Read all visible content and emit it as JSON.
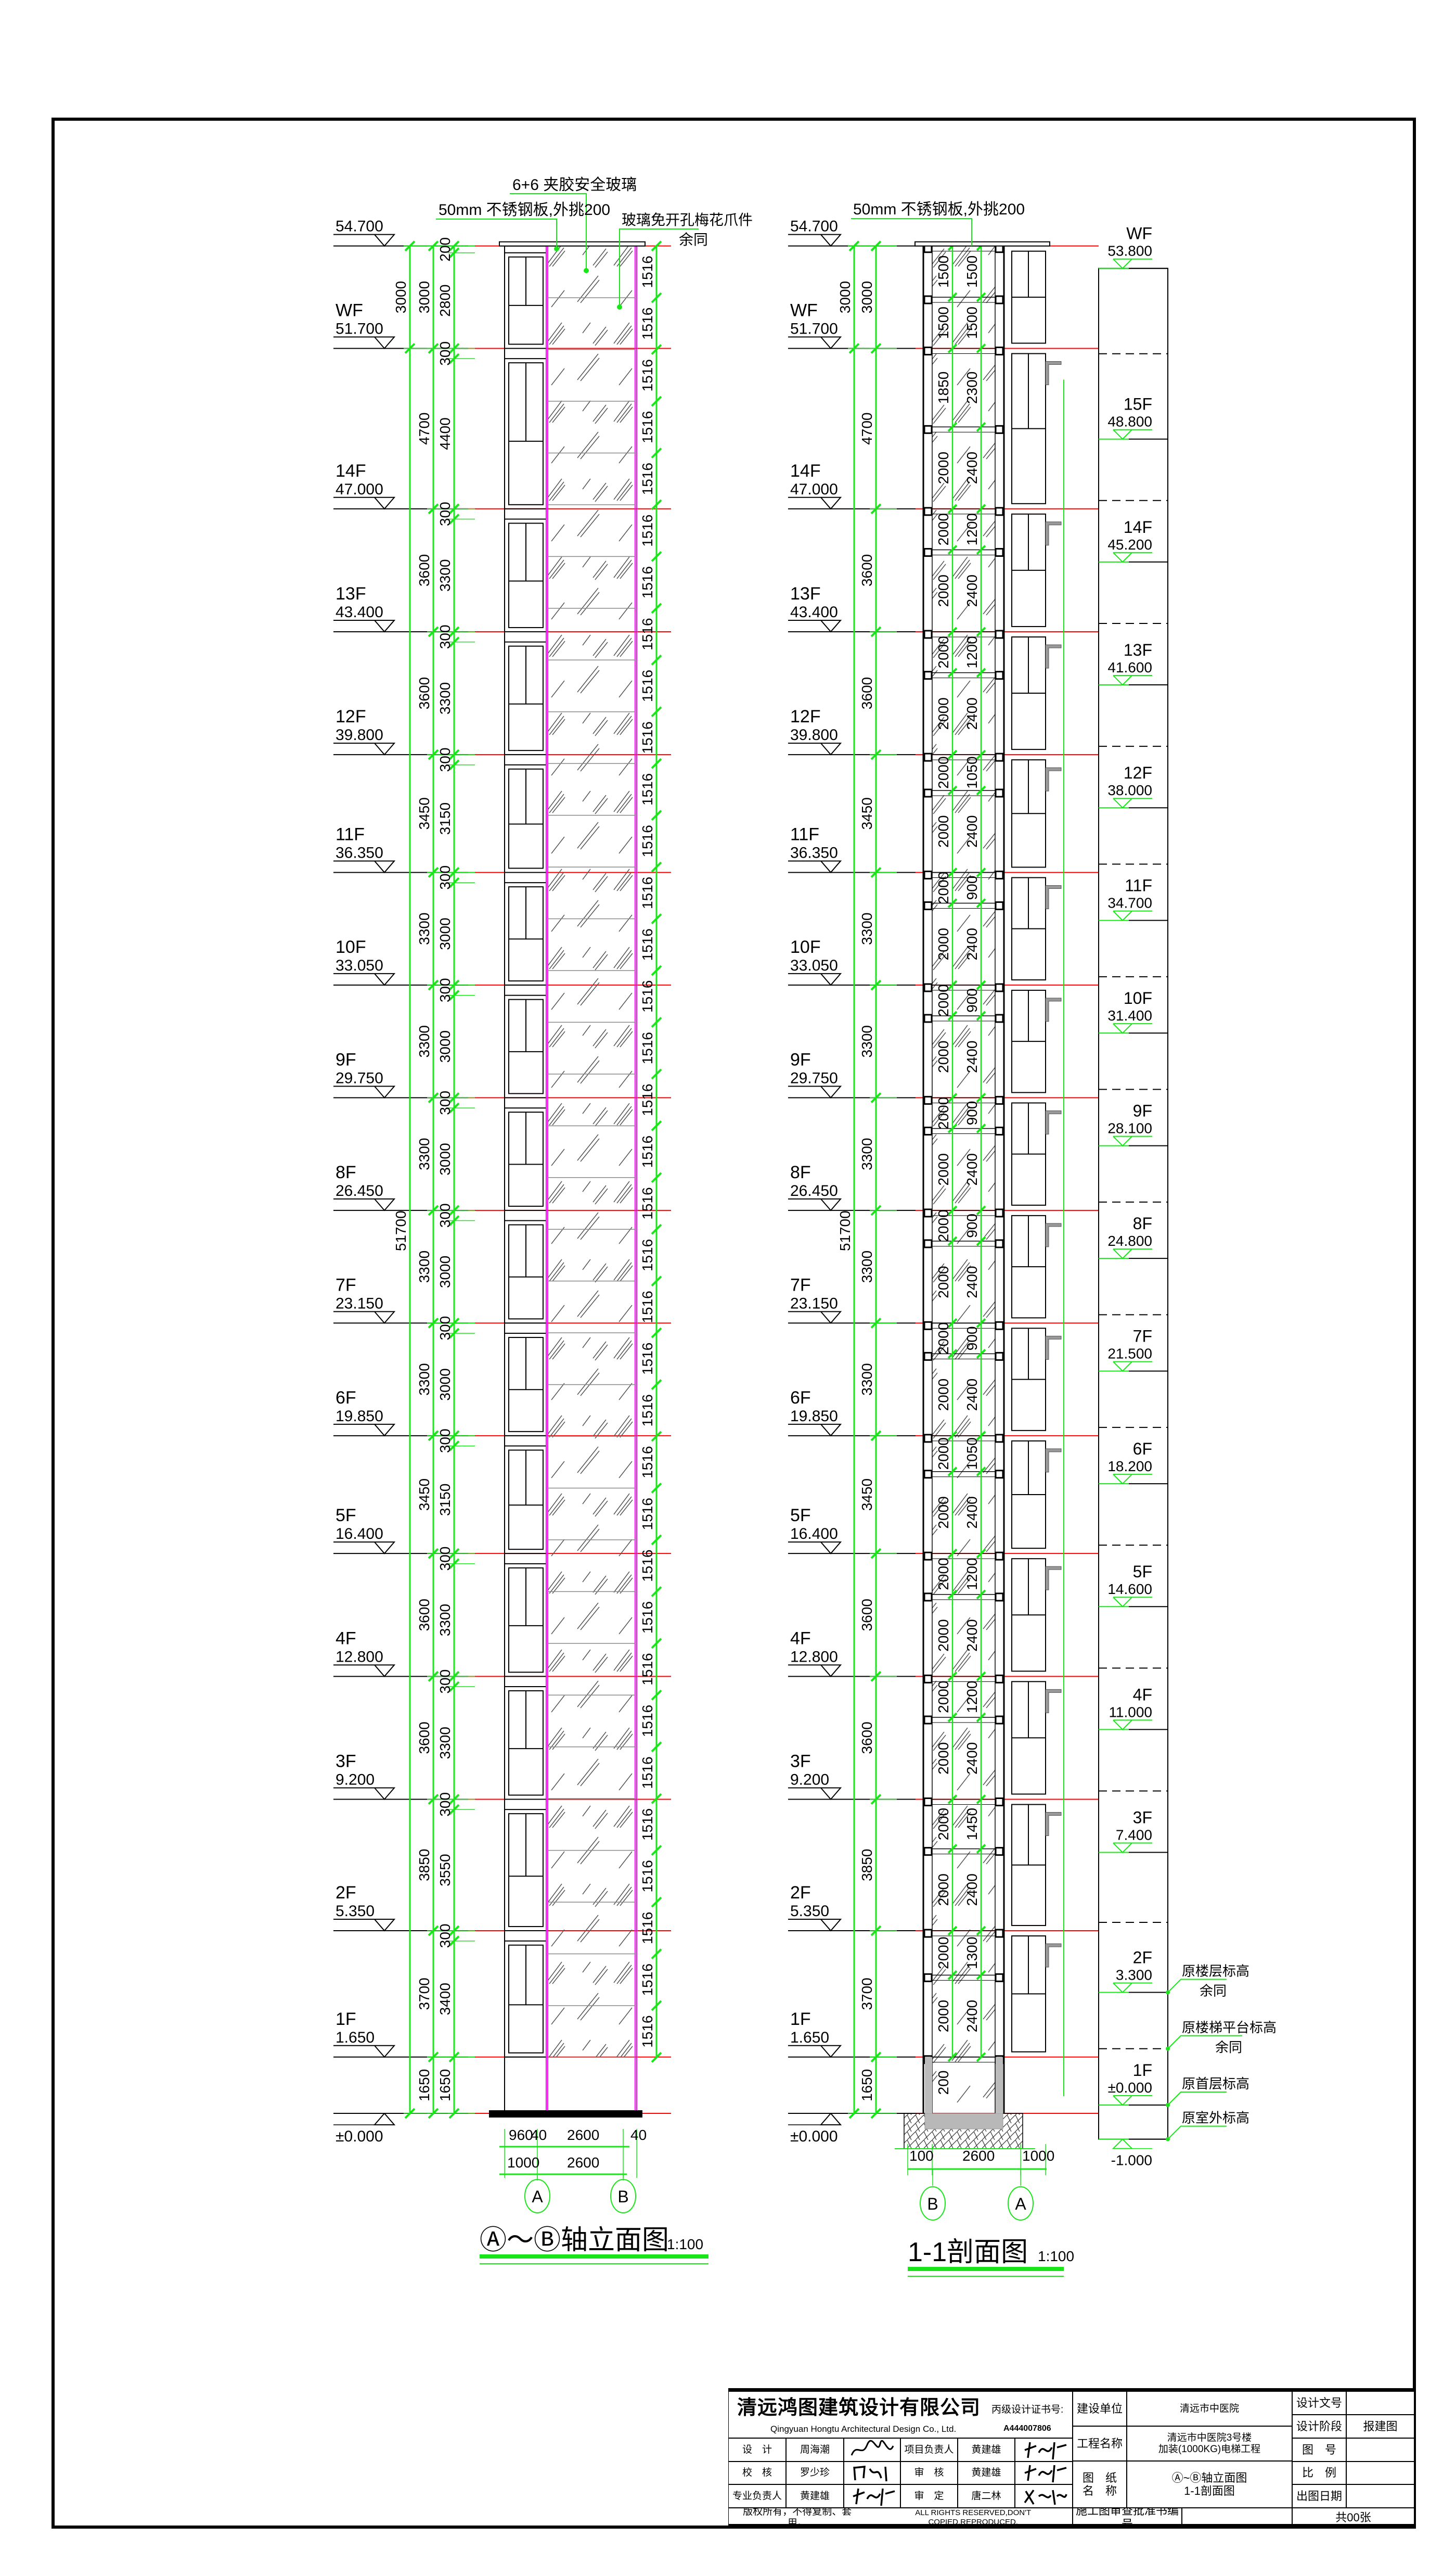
{
  "colors": {
    "dimension": "#19e619",
    "level_line": "#ff0000",
    "glass_edge": "#ff00ff",
    "hatch": "#555555",
    "border": "#000000"
  },
  "elevation_view": {
    "title": "Ⓐ～Ⓑ轴立面图",
    "scale": "1:100",
    "annotations": {
      "glass": "6+6 夹胶安全玻璃",
      "steel_plate": "50mm 不锈钢板,外挑200",
      "fitting": "玻璃免开孔梅花爪件",
      "same_rest": "余同"
    },
    "levels": [
      {
        "name": "",
        "value": "54.700"
      },
      {
        "name": "WF",
        "value": "51.700"
      },
      {
        "name": "14F",
        "value": "47.000"
      },
      {
        "name": "13F",
        "value": "43.400"
      },
      {
        "name": "12F",
        "value": "39.800"
      },
      {
        "name": "11F",
        "value": "36.350"
      },
      {
        "name": "10F",
        "value": "33.050"
      },
      {
        "name": "9F",
        "value": "29.750"
      },
      {
        "name": "8F",
        "value": "26.450"
      },
      {
        "name": "7F",
        "value": "23.150"
      },
      {
        "name": "6F",
        "value": "19.850"
      },
      {
        "name": "5F",
        "value": "16.400"
      },
      {
        "name": "4F",
        "value": "12.800"
      },
      {
        "name": "3F",
        "value": "9.200"
      },
      {
        "name": "2F",
        "value": "5.350"
      },
      {
        "name": "1F",
        "value": "1.650"
      },
      {
        "name": "",
        "value": "±0.000"
      }
    ],
    "total_dims": [
      "3000",
      "51700"
    ],
    "floor_dims": [
      "3000",
      "4700",
      "3600",
      "3600",
      "3450",
      "3300",
      "3300",
      "3300",
      "3300",
      "3300",
      "3450",
      "3600",
      "3600",
      "3850",
      "3700",
      "1650"
    ],
    "inner_dims": [
      "200",
      "2800",
      "300",
      "4400",
      "300",
      "3300",
      "300",
      "3300",
      "300",
      "3150",
      "300",
      "3000",
      "300",
      "3000",
      "300",
      "3000",
      "300",
      "3000",
      "300",
      "3000",
      "300",
      "3150",
      "300",
      "3300",
      "300",
      "3300",
      "300",
      "3550",
      "300",
      "3400",
      "1650"
    ],
    "glass_panel_dim": "1516",
    "glass_panel_count": 35,
    "bottom_dims_row1": [
      "960",
      "40",
      "2600",
      "40"
    ],
    "bottom_dims_row2": [
      "1000",
      "2600"
    ],
    "axes": [
      "A",
      "B"
    ]
  },
  "section_view": {
    "title": "1-1剖面图",
    "scale": "1:100",
    "annotation": "50mm 不锈钢板,外挑200",
    "total_dims": [
      "3000",
      "51700"
    ],
    "col_a": [
      "1500",
      "1500",
      "1850",
      "2000",
      "2000",
      "2000",
      "2000",
      "2000",
      "2000",
      "2000",
      "2000",
      "2000",
      "2000",
      "2000",
      "2000",
      "2000",
      "2000",
      "2000",
      "2000",
      "2000",
      "2000",
      "2000",
      "2000",
      "2000",
      "2000",
      "2000",
      "2000",
      "2000",
      "2000",
      "2000"
    ],
    "col_b": [
      "1500",
      "1500",
      "2300",
      "2400",
      "1200",
      "2400",
      "1200",
      "2400",
      "1050",
      "2400",
      "900",
      "2400",
      "900",
      "2400",
      "900",
      "2400",
      "900",
      "2400",
      "900",
      "2400",
      "1050",
      "2400",
      "1200",
      "2400",
      "1200",
      "2400",
      "1450",
      "2400",
      "1300",
      "2400"
    ],
    "base_dim": "200",
    "existing_levels": [
      {
        "name": "WF",
        "value": "53.800"
      },
      {
        "name": "15F",
        "value": "48.800"
      },
      {
        "name": "14F",
        "value": "45.200"
      },
      {
        "name": "13F",
        "value": "41.600"
      },
      {
        "name": "12F",
        "value": "38.000"
      },
      {
        "name": "11F",
        "value": "34.700"
      },
      {
        "name": "10F",
        "value": "31.400"
      },
      {
        "name": "9F",
        "value": "28.100"
      },
      {
        "name": "8F",
        "value": "24.800"
      },
      {
        "name": "7F",
        "value": "21.500"
      },
      {
        "name": "6F",
        "value": "18.200"
      },
      {
        "name": "5F",
        "value": "14.600"
      },
      {
        "name": "4F",
        "value": "11.000"
      },
      {
        "name": "3F",
        "value": "7.400"
      },
      {
        "name": "2F",
        "value": "3.300"
      },
      {
        "name": "1F",
        "value": "±0.000"
      },
      {
        "name": "",
        "value": "-1.000"
      }
    ],
    "notes": {
      "floor_level": "原楼层标高",
      "floor_level_same": "余同",
      "stair_landing": "原楼梯平台标高",
      "stair_landing_same": "余同",
      "ground_floor": "原首层标高",
      "outdoor": "原室外标高"
    },
    "bottom_dims": [
      "100",
      "2600",
      "1000"
    ],
    "axes": [
      "B",
      "A"
    ]
  },
  "title_block": {
    "company_cn": "清远鸿图建筑设计有限公司",
    "company_en": "Qingyuan  Hongtu Architectural Design Co., Ltd.",
    "cert_label": "丙级设计证书号:",
    "cert_no": "A444007806",
    "rows": [
      {
        "role": "设　计",
        "person": "周海潮",
        "role2": "项目负责人",
        "person2": "黄建雄"
      },
      {
        "role": "校　核",
        "person": "罗少珍",
        "role2": "审　核",
        "person2": "黄建雄"
      },
      {
        "role": "专业负责人",
        "person": "黄建雄",
        "role2": "审　定",
        "person2": "唐二林"
      }
    ],
    "copyright_cn": "版权所有，不得复制、套用。",
    "copyright_en": "ALL RIGHTS RESERVED,DON'T COPIED,REPRODUCED.",
    "client_label": "建设单位",
    "client": "清远市中医院",
    "project_label": "工程名称",
    "project_line1": "清远市中医院3号楼",
    "project_line2": "加装(1000KG)电梯工程",
    "drawing_label_1": "图　纸",
    "drawing_label_2": "名　称",
    "drawing_name_1": "Ⓐ~Ⓑ轴立面图",
    "drawing_name_2": "1-1剖面图",
    "review_label": "施工图审查批准书编号",
    "review_no": "",
    "doc_no_label": "设计文号",
    "doc_no": "",
    "stage_label": "设计阶段",
    "stage": "报建图",
    "drawing_no_label": "图　号",
    "drawing_no": "",
    "scale_label": "比　例",
    "scale": "",
    "date_label": "出图日期",
    "date": "",
    "sheets": "共00张"
  }
}
